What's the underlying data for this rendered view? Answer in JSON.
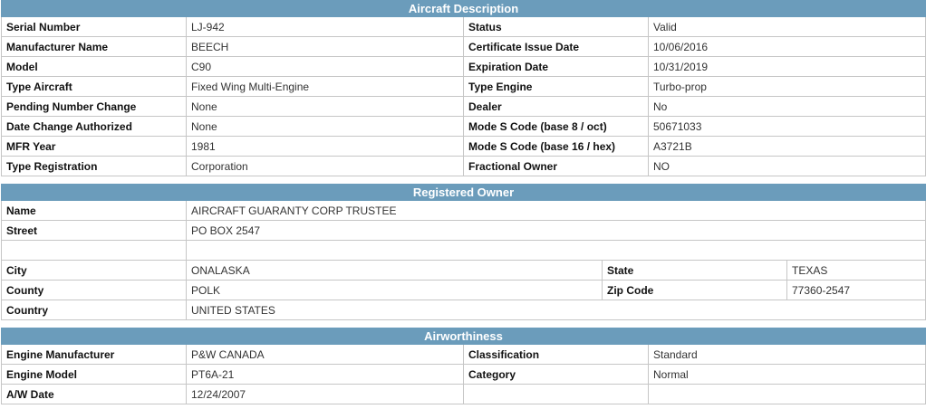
{
  "aircraft": {
    "title": "Aircraft Description",
    "rows": [
      {
        "l1": "Serial Number",
        "v1": "LJ-942",
        "l2": "Status",
        "v2": "Valid"
      },
      {
        "l1": "Manufacturer Name",
        "v1": "BEECH",
        "l2": "Certificate Issue Date",
        "v2": "10/06/2016"
      },
      {
        "l1": "Model",
        "v1": "C90",
        "l2": "Expiration Date",
        "v2": "10/31/2019"
      },
      {
        "l1": "Type Aircraft",
        "v1": "Fixed Wing Multi-Engine",
        "l2": "Type Engine",
        "v2": "Turbo-prop"
      },
      {
        "l1": "Pending Number Change",
        "v1": "None",
        "l2": "Dealer",
        "v2": "No"
      },
      {
        "l1": "Date Change Authorized",
        "v1": "None",
        "l2": "Mode S Code (base 8 / oct)",
        "v2": "50671033"
      },
      {
        "l1": "MFR Year",
        "v1": "1981",
        "l2": "Mode S Code (base 16 / hex)",
        "v2": "A3721B"
      },
      {
        "l1": "Type Registration",
        "v1": "Corporation",
        "l2": "Fractional Owner",
        "v2": "NO"
      }
    ]
  },
  "owner": {
    "title": "Registered Owner",
    "name_label": "Name",
    "name_value": "AIRCRAFT GUARANTY CORP TRUSTEE",
    "street_label": "Street",
    "street_value": "PO BOX 2547",
    "street2_value": "",
    "city_label": "City",
    "city_value": "ONALASKA",
    "state_label": "State",
    "state_value": "TEXAS",
    "county_label": "County",
    "county_value": "POLK",
    "zip_label": "Zip Code",
    "zip_value": "77360-2547",
    "country_label": "Country",
    "country_value": "UNITED STATES"
  },
  "airworthiness": {
    "title": "Airworthiness",
    "rows": [
      {
        "l1": "Engine Manufacturer",
        "v1": "P&W CANADA",
        "l2": "Classification",
        "v2": "Standard"
      },
      {
        "l1": "Engine Model",
        "v1": "PT6A-21",
        "l2": "Category",
        "v2": "Normal"
      },
      {
        "l1": "A/W Date",
        "v1": "12/24/2007",
        "l2": "",
        "v2": ""
      }
    ]
  }
}
